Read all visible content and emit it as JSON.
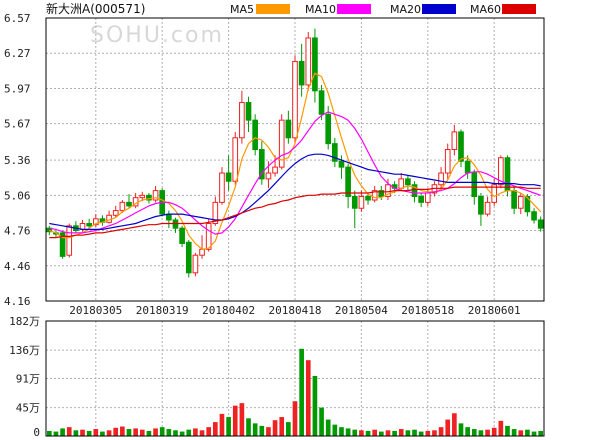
{
  "header": {
    "title": "新大洲A(000571)",
    "watermark": "SOHU.com"
  },
  "legend": [
    {
      "label": "MA5",
      "color": "#ff9900"
    },
    {
      "label": "MA10",
      "color": "#ff00ff"
    },
    {
      "label": "MA20",
      "color": "#0000cc"
    },
    {
      "label": "MA60",
      "color": "#dd0000"
    }
  ],
  "colors": {
    "up": "#ee2222",
    "down": "#009900",
    "grid": "#b0b0b0",
    "frame": "#000000"
  },
  "chart_data": {
    "type": "candlestick",
    "price_axis": {
      "ticks": [
        "6.57",
        "6.27",
        "5.97",
        "5.67",
        "5.36",
        "5.06",
        "4.76",
        "4.46",
        "4.16"
      ],
      "range": [
        4.16,
        6.57
      ]
    },
    "date_labels": [
      "20180305",
      "20180319",
      "20180402",
      "20180418",
      "20180504",
      "20180518",
      "20180601"
    ],
    "date_label_index": [
      7,
      17,
      27,
      37,
      47,
      57,
      67
    ],
    "volume_axis": {
      "ticks": [
        "182万",
        "136万",
        "91万",
        "45万",
        "0"
      ],
      "range": [
        0,
        182
      ]
    },
    "candles": [
      [
        4.78,
        4.75,
        4.8,
        4.72,
        8
      ],
      [
        4.74,
        4.73,
        4.76,
        4.7,
        7
      ],
      [
        4.74,
        4.54,
        4.76,
        4.52,
        12
      ],
      [
        4.55,
        4.8,
        4.82,
        4.53,
        14
      ],
      [
        4.8,
        4.76,
        4.84,
        4.74,
        9
      ],
      [
        4.77,
        4.82,
        4.85,
        4.75,
        10
      ],
      [
        4.82,
        4.8,
        4.86,
        4.78,
        8
      ],
      [
        4.81,
        4.86,
        4.9,
        4.79,
        11
      ],
      [
        4.86,
        4.83,
        4.89,
        4.8,
        7
      ],
      [
        4.83,
        4.89,
        4.93,
        4.82,
        9
      ],
      [
        4.89,
        4.93,
        4.97,
        4.87,
        13
      ],
      [
        4.93,
        5.0,
        5.02,
        4.91,
        15
      ],
      [
        5.0,
        4.97,
        5.07,
        4.95,
        11
      ],
      [
        4.97,
        5.04,
        5.08,
        4.95,
        12
      ],
      [
        5.04,
        5.06,
        5.09,
        5.01,
        10
      ],
      [
        5.06,
        5.02,
        5.08,
        4.99,
        8
      ],
      [
        5.02,
        5.1,
        5.14,
        5.0,
        12
      ],
      [
        5.1,
        4.9,
        5.12,
        4.88,
        14
      ],
      [
        4.9,
        4.85,
        4.93,
        4.78,
        11
      ],
      [
        4.85,
        4.78,
        4.87,
        4.74,
        9
      ],
      [
        4.78,
        4.65,
        4.8,
        4.62,
        7
      ],
      [
        4.66,
        4.4,
        4.68,
        4.36,
        10
      ],
      [
        4.4,
        4.55,
        4.57,
        4.37,
        12
      ],
      [
        4.55,
        4.6,
        4.72,
        4.52,
        9
      ],
      [
        4.6,
        4.82,
        4.86,
        4.58,
        14
      ],
      [
        4.82,
        5.0,
        5.05,
        4.8,
        22
      ],
      [
        5.0,
        5.25,
        5.3,
        4.98,
        35
      ],
      [
        5.25,
        5.18,
        5.4,
        5.1,
        30
      ],
      [
        5.18,
        5.55,
        5.6,
        5.15,
        48
      ],
      [
        5.55,
        5.85,
        5.95,
        5.5,
        52
      ],
      [
        5.85,
        5.7,
        5.9,
        5.6,
        28
      ],
      [
        5.7,
        5.45,
        5.75,
        5.4,
        20
      ],
      [
        5.45,
        5.2,
        5.52,
        5.15,
        16
      ],
      [
        5.2,
        5.25,
        5.35,
        5.12,
        14
      ],
      [
        5.25,
        5.3,
        5.4,
        5.22,
        25
      ],
      [
        5.3,
        5.7,
        5.75,
        5.28,
        30
      ],
      [
        5.7,
        5.55,
        5.78,
        5.5,
        22
      ],
      [
        5.55,
        6.2,
        6.25,
        5.5,
        55
      ],
      [
        6.2,
        6.0,
        6.35,
        5.9,
        138
      ],
      [
        6.0,
        6.4,
        6.45,
        5.95,
        120
      ],
      [
        6.4,
        5.95,
        6.48,
        5.85,
        95
      ],
      [
        5.95,
        5.75,
        6.0,
        5.7,
        45
      ],
      [
        5.75,
        5.5,
        5.82,
        5.45,
        26
      ],
      [
        5.5,
        5.35,
        5.55,
        5.3,
        18
      ],
      [
        5.35,
        5.3,
        5.4,
        5.2,
        14
      ],
      [
        5.3,
        5.05,
        5.33,
        4.95,
        12
      ],
      [
        5.05,
        4.95,
        5.1,
        4.78,
        10
      ],
      [
        4.95,
        5.05,
        5.1,
        4.92,
        9
      ],
      [
        5.05,
        5.02,
        5.08,
        4.98,
        8
      ],
      [
        5.02,
        5.1,
        5.14,
        5.0,
        10
      ],
      [
        5.1,
        5.05,
        5.14,
        5.02,
        7
      ],
      [
        5.05,
        5.15,
        5.2,
        5.02,
        9
      ],
      [
        5.15,
        5.12,
        5.18,
        5.08,
        8
      ],
      [
        5.12,
        5.2,
        5.25,
        5.1,
        11
      ],
      [
        5.2,
        5.15,
        5.23,
        5.1,
        9
      ],
      [
        5.15,
        5.05,
        5.18,
        5.0,
        10
      ],
      [
        5.05,
        5.0,
        5.08,
        4.96,
        7
      ],
      [
        5.0,
        5.08,
        5.12,
        4.97,
        8
      ],
      [
        5.08,
        5.15,
        5.18,
        5.05,
        9
      ],
      [
        5.15,
        5.25,
        5.3,
        5.12,
        14
      ],
      [
        5.25,
        5.45,
        5.5,
        5.2,
        26
      ],
      [
        5.45,
        5.6,
        5.66,
        5.4,
        36
      ],
      [
        5.6,
        5.35,
        5.62,
        5.3,
        20
      ],
      [
        5.35,
        5.25,
        5.4,
        5.2,
        14
      ],
      [
        5.25,
        5.05,
        5.28,
        4.98,
        11
      ],
      [
        5.05,
        4.9,
        5.08,
        4.8,
        9
      ],
      [
        4.9,
        5.0,
        5.05,
        4.88,
        10
      ],
      [
        5.0,
        5.15,
        5.2,
        4.97,
        13
      ],
      [
        5.15,
        5.38,
        5.4,
        5.12,
        24
      ],
      [
        5.38,
        5.1,
        5.4,
        5.05,
        16
      ],
      [
        5.1,
        4.95,
        5.13,
        4.9,
        11
      ],
      [
        4.95,
        5.05,
        5.08,
        4.9,
        9
      ],
      [
        5.05,
        4.92,
        5.07,
        4.88,
        10
      ],
      [
        4.92,
        4.85,
        4.95,
        4.82,
        7
      ],
      [
        4.85,
        4.78,
        4.88,
        4.75,
        8
      ]
    ],
    "ma": {
      "MA5": [
        4.76,
        4.74,
        4.7,
        4.7,
        4.72,
        4.74,
        4.78,
        4.82,
        4.83,
        4.85,
        4.87,
        4.92,
        4.95,
        4.99,
        5.02,
        5.03,
        5.04,
        5.02,
        4.99,
        4.93,
        4.84,
        4.72,
        4.65,
        4.6,
        4.61,
        4.67,
        4.83,
        4.97,
        5.13,
        5.37,
        5.5,
        5.55,
        5.53,
        5.47,
        5.38,
        5.36,
        5.38,
        5.5,
        5.72,
        5.97,
        6.1,
        6.07,
        5.93,
        5.74,
        5.55,
        5.37,
        5.23,
        5.14,
        5.07,
        5.04,
        5.04,
        5.07,
        5.09,
        5.12,
        5.14,
        5.13,
        5.1,
        5.09,
        5.09,
        5.11,
        5.19,
        5.31,
        5.37,
        5.38,
        5.32,
        5.23,
        5.11,
        5.05,
        5.08,
        5.1,
        5.1,
        5.08,
        5.04,
        4.98,
        4.92
      ],
      "MA10": [
        4.78,
        4.77,
        4.75,
        4.74,
        4.74,
        4.74,
        4.75,
        4.76,
        4.78,
        4.8,
        4.82,
        4.85,
        4.88,
        4.91,
        4.94,
        4.97,
        4.99,
        5.0,
        5.0,
        4.98,
        4.95,
        4.9,
        4.85,
        4.8,
        4.76,
        4.73,
        4.74,
        4.79,
        4.86,
        4.96,
        5.06,
        5.16,
        5.25,
        5.31,
        5.36,
        5.4,
        5.42,
        5.47,
        5.53,
        5.61,
        5.69,
        5.74,
        5.77,
        5.75,
        5.73,
        5.7,
        5.63,
        5.54,
        5.43,
        5.32,
        5.22,
        5.16,
        5.12,
        5.1,
        5.09,
        5.08,
        5.08,
        5.08,
        5.09,
        5.1,
        5.12,
        5.16,
        5.21,
        5.25,
        5.26,
        5.26,
        5.24,
        5.21,
        5.18,
        5.16,
        5.14,
        5.12,
        5.1,
        5.08,
        5.06
      ],
      "MA20": [
        4.82,
        4.81,
        4.8,
        4.79,
        4.78,
        4.77,
        4.77,
        4.77,
        4.77,
        4.78,
        4.79,
        4.8,
        4.81,
        4.82,
        4.84,
        4.86,
        4.88,
        4.89,
        4.9,
        4.9,
        4.9,
        4.89,
        4.88,
        4.87,
        4.86,
        4.85,
        4.85,
        4.86,
        4.88,
        4.91,
        4.95,
        5.0,
        5.05,
        5.1,
        5.16,
        5.22,
        5.28,
        5.33,
        5.37,
        5.4,
        5.41,
        5.41,
        5.4,
        5.38,
        5.36,
        5.34,
        5.32,
        5.3,
        5.28,
        5.27,
        5.26,
        5.25,
        5.24,
        5.24,
        5.23,
        5.22,
        5.21,
        5.2,
        5.19,
        5.18,
        5.17,
        5.17,
        5.17,
        5.17,
        5.17,
        5.17,
        5.17,
        5.16,
        5.16,
        5.16,
        5.16,
        5.15,
        5.15,
        5.15,
        5.14
      ],
      "MA60": [
        4.7,
        4.7,
        4.71,
        4.71,
        4.72,
        4.72,
        4.73,
        4.74,
        4.74,
        4.75,
        4.76,
        4.77,
        4.78,
        4.79,
        4.8,
        4.81,
        4.81,
        4.82,
        4.82,
        4.82,
        4.82,
        4.82,
        4.82,
        4.82,
        4.83,
        4.84,
        4.85,
        4.87,
        4.89,
        4.91,
        4.93,
        4.95,
        4.96,
        4.98,
        4.99,
        5.01,
        5.02,
        5.04,
        5.05,
        5.06,
        5.06,
        5.07,
        5.07,
        5.07,
        5.08,
        5.08,
        5.08,
        5.08,
        5.08,
        5.09,
        5.09,
        5.09,
        5.1,
        5.1,
        5.1,
        5.11,
        5.11,
        5.11,
        5.12,
        5.12,
        5.12,
        5.13,
        5.13,
        5.13,
        5.13,
        5.13,
        5.13,
        5.13,
        5.13,
        5.13,
        5.13,
        5.13,
        5.12,
        5.12,
        5.12
      ]
    }
  }
}
